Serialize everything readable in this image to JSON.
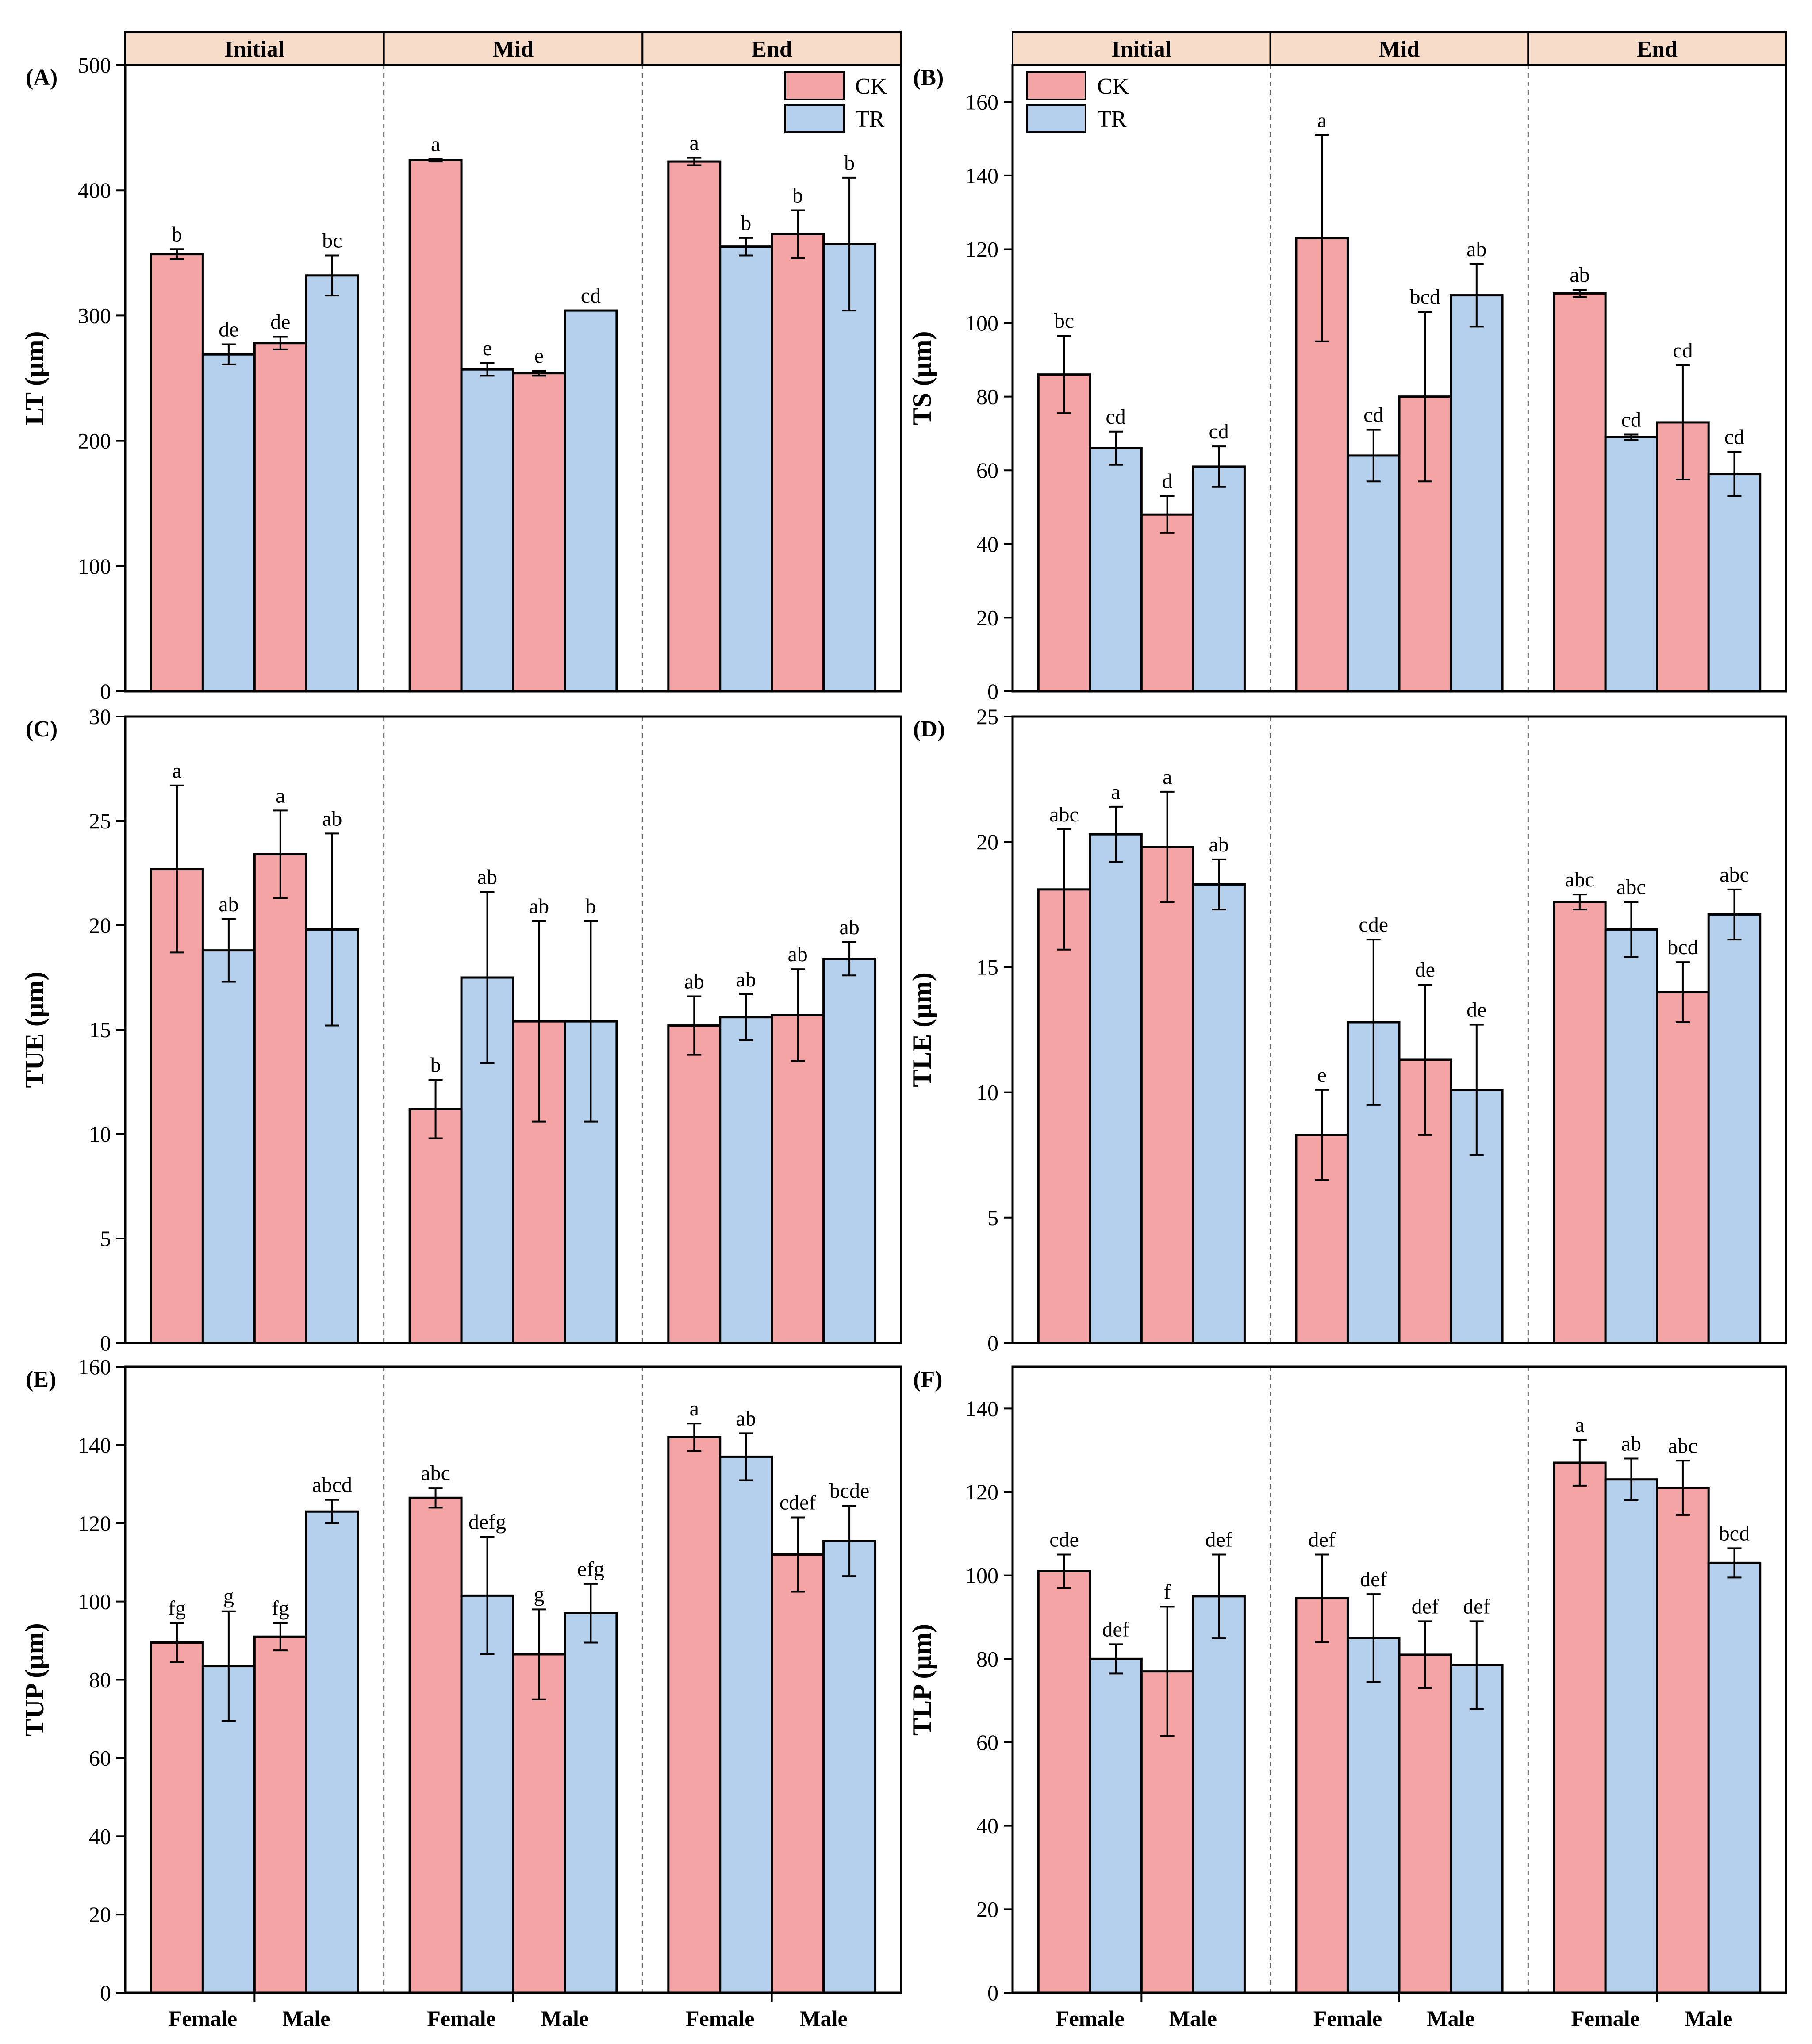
{
  "colors": {
    "CK": "#f4a4a4",
    "TR": "#b4d0ec",
    "strip": "#f7dcc9",
    "axis": "#000000",
    "divider": "#666666"
  },
  "legend": {
    "entries": [
      "CK",
      "TR"
    ]
  },
  "facets": [
    "Initial",
    "Mid",
    "End"
  ],
  "x_categories": [
    "Female",
    "Male"
  ],
  "chart_data": [
    {
      "type": "bar",
      "panel": "(A)",
      "ylabel": "LT (µm)",
      "ylim": [
        0,
        500
      ],
      "yticks": [
        0,
        100,
        200,
        300,
        400,
        500
      ],
      "facets": [
        "Initial",
        "Mid",
        "End"
      ],
      "categories": [
        "Female",
        "Male"
      ],
      "series_order": [
        "CK",
        "TR"
      ],
      "legend": true,
      "bars": [
        {
          "facet": "Initial",
          "category": "Female",
          "series": "CK",
          "value": 349,
          "err": 4,
          "letter": "b"
        },
        {
          "facet": "Initial",
          "category": "Female",
          "series": "TR",
          "value": 269,
          "err": 8,
          "letter": "de"
        },
        {
          "facet": "Initial",
          "category": "Male",
          "series": "CK",
          "value": 278,
          "err": 5,
          "letter": "de"
        },
        {
          "facet": "Initial",
          "category": "Male",
          "series": "TR",
          "value": 332,
          "err": 16,
          "letter": "bc"
        },
        {
          "facet": "Mid",
          "category": "Female",
          "series": "CK",
          "value": 424,
          "err": 1,
          "letter": "a"
        },
        {
          "facet": "Mid",
          "category": "Female",
          "series": "TR",
          "value": 257,
          "err": 5,
          "letter": "e"
        },
        {
          "facet": "Mid",
          "category": "Male",
          "series": "CK",
          "value": 254,
          "err": 2,
          "letter": "e"
        },
        {
          "facet": "Mid",
          "category": "Male",
          "series": "TR",
          "value": 304,
          "err": 0,
          "letter": "cd"
        },
        {
          "facet": "End",
          "category": "Female",
          "series": "CK",
          "value": 423,
          "err": 3,
          "letter": "a"
        },
        {
          "facet": "End",
          "category": "Female",
          "series": "TR",
          "value": 355,
          "err": 7,
          "letter": "b"
        },
        {
          "facet": "End",
          "category": "Male",
          "series": "CK",
          "value": 365,
          "err": 19,
          "letter": "b"
        },
        {
          "facet": "End",
          "category": "Male",
          "series": "TR",
          "value": 357,
          "err": 53,
          "letter": "b"
        }
      ]
    },
    {
      "type": "bar",
      "panel": "(B)",
      "ylabel": "TS (µm)",
      "ylim": [
        0,
        170
      ],
      "yticks": [
        0,
        20,
        40,
        60,
        80,
        100,
        120,
        140,
        160
      ],
      "facets": [
        "Initial",
        "Mid",
        "End"
      ],
      "categories": [
        "Female",
        "Male"
      ],
      "series_order": [
        "CK",
        "TR"
      ],
      "legend": true,
      "bars": [
        {
          "facet": "Initial",
          "category": "Female",
          "series": "CK",
          "value": 86,
          "err": 10.5,
          "letter": "bc"
        },
        {
          "facet": "Initial",
          "category": "Female",
          "series": "TR",
          "value": 66,
          "err": 4.5,
          "letter": "cd"
        },
        {
          "facet": "Initial",
          "category": "Male",
          "series": "CK",
          "value": 48,
          "err": 5,
          "letter": "d"
        },
        {
          "facet": "Initial",
          "category": "Male",
          "series": "TR",
          "value": 61,
          "err": 5.5,
          "letter": "cd"
        },
        {
          "facet": "Mid",
          "category": "Female",
          "series": "CK",
          "value": 123,
          "err": 28,
          "letter": "a"
        },
        {
          "facet": "Mid",
          "category": "Female",
          "series": "TR",
          "value": 64,
          "err": 7,
          "letter": "cd"
        },
        {
          "facet": "Mid",
          "category": "Male",
          "series": "CK",
          "value": 80,
          "err": 23,
          "letter": "bcd"
        },
        {
          "facet": "Mid",
          "category": "Male",
          "series": "TR",
          "value": 107.5,
          "err": 8.5,
          "letter": "ab"
        },
        {
          "facet": "End",
          "category": "Female",
          "series": "CK",
          "value": 108,
          "err": 1,
          "letter": "ab"
        },
        {
          "facet": "End",
          "category": "Female",
          "series": "TR",
          "value": 69,
          "err": 0.7,
          "letter": "cd"
        },
        {
          "facet": "End",
          "category": "Male",
          "series": "CK",
          "value": 73,
          "err": 15.5,
          "letter": "cd"
        },
        {
          "facet": "End",
          "category": "Male",
          "series": "TR",
          "value": 59,
          "err": 6,
          "letter": "cd"
        }
      ]
    },
    {
      "type": "bar",
      "panel": "(C)",
      "ylabel": "TUE (µm)",
      "ylim": [
        0,
        30
      ],
      "yticks": [
        0,
        5,
        10,
        15,
        20,
        25,
        30
      ],
      "facets": [
        "Initial",
        "Mid",
        "End"
      ],
      "categories": [
        "Female",
        "Male"
      ],
      "series_order": [
        "CK",
        "TR"
      ],
      "legend": false,
      "bars": [
        {
          "facet": "Initial",
          "category": "Female",
          "series": "CK",
          "value": 22.7,
          "err": 4,
          "letter": "a"
        },
        {
          "facet": "Initial",
          "category": "Female",
          "series": "TR",
          "value": 18.8,
          "err": 1.5,
          "letter": "ab"
        },
        {
          "facet": "Initial",
          "category": "Male",
          "series": "CK",
          "value": 23.4,
          "err": 2.1,
          "letter": "a"
        },
        {
          "facet": "Initial",
          "category": "Male",
          "series": "TR",
          "value": 19.8,
          "err": 4.6,
          "letter": "ab"
        },
        {
          "facet": "Mid",
          "category": "Female",
          "series": "CK",
          "value": 11.2,
          "err": 1.4,
          "letter": "b"
        },
        {
          "facet": "Mid",
          "category": "Female",
          "series": "TR",
          "value": 17.5,
          "err": 4.1,
          "letter": "ab"
        },
        {
          "facet": "Mid",
          "category": "Male",
          "series": "CK",
          "value": 15.4,
          "err": 4.8,
          "letter": "ab"
        },
        {
          "facet": "Mid",
          "category": "Male",
          "series": "TR",
          "value": 15.4,
          "err": 4.8,
          "letter": "b"
        },
        {
          "facet": "End",
          "category": "Female",
          "series": "CK",
          "value": 15.2,
          "err": 1.4,
          "letter": "ab"
        },
        {
          "facet": "End",
          "category": "Female",
          "series": "TR",
          "value": 15.6,
          "err": 1.1,
          "letter": "ab"
        },
        {
          "facet": "End",
          "category": "Male",
          "series": "CK",
          "value": 15.7,
          "err": 2.2,
          "letter": "ab"
        },
        {
          "facet": "End",
          "category": "Male",
          "series": "TR",
          "value": 18.4,
          "err": 0.8,
          "letter": "ab"
        }
      ]
    },
    {
      "type": "bar",
      "panel": "(D)",
      "ylabel": "TLE (µm)",
      "ylim": [
        0,
        25
      ],
      "yticks": [
        0,
        5,
        10,
        15,
        20,
        25
      ],
      "facets": [
        "Initial",
        "Mid",
        "End"
      ],
      "categories": [
        "Female",
        "Male"
      ],
      "series_order": [
        "CK",
        "TR"
      ],
      "legend": false,
      "bars": [
        {
          "facet": "Initial",
          "category": "Female",
          "series": "CK",
          "value": 18.1,
          "err": 2.4,
          "letter": "abc"
        },
        {
          "facet": "Initial",
          "category": "Female",
          "series": "TR",
          "value": 20.3,
          "err": 1.1,
          "letter": "a"
        },
        {
          "facet": "Initial",
          "category": "Male",
          "series": "CK",
          "value": 19.8,
          "err": 2.2,
          "letter": "a"
        },
        {
          "facet": "Initial",
          "category": "Male",
          "series": "TR",
          "value": 18.3,
          "err": 1,
          "letter": "ab"
        },
        {
          "facet": "Mid",
          "category": "Female",
          "series": "CK",
          "value": 8.3,
          "err": 1.8,
          "letter": "e"
        },
        {
          "facet": "Mid",
          "category": "Female",
          "series": "TR",
          "value": 12.8,
          "err": 3.3,
          "letter": "cde"
        },
        {
          "facet": "Mid",
          "category": "Male",
          "series": "CK",
          "value": 11.3,
          "err": 3,
          "letter": "de"
        },
        {
          "facet": "Mid",
          "category": "Male",
          "series": "TR",
          "value": 10.1,
          "err": 2.6,
          "letter": "de"
        },
        {
          "facet": "End",
          "category": "Female",
          "series": "CK",
          "value": 17.6,
          "err": 0.3,
          "letter": "abc"
        },
        {
          "facet": "End",
          "category": "Female",
          "series": "TR",
          "value": 16.5,
          "err": 1.1,
          "letter": "abc"
        },
        {
          "facet": "End",
          "category": "Male",
          "series": "CK",
          "value": 14,
          "err": 1.2,
          "letter": "bcd"
        },
        {
          "facet": "End",
          "category": "Male",
          "series": "TR",
          "value": 17.1,
          "err": 1,
          "letter": "abc"
        }
      ]
    },
    {
      "type": "bar",
      "panel": "(E)",
      "ylabel": "TUP (µm)",
      "ylim": [
        0,
        160
      ],
      "yticks": [
        0,
        20,
        40,
        60,
        80,
        100,
        120,
        140,
        160
      ],
      "facets": [
        "Initial",
        "Mid",
        "End"
      ],
      "categories": [
        "Female",
        "Male"
      ],
      "series_order": [
        "CK",
        "TR"
      ],
      "legend": false,
      "bars": [
        {
          "facet": "Initial",
          "category": "Female",
          "series": "CK",
          "value": 89.5,
          "err": 5,
          "letter": "fg"
        },
        {
          "facet": "Initial",
          "category": "Female",
          "series": "TR",
          "value": 83.5,
          "err": 14,
          "letter": "g"
        },
        {
          "facet": "Initial",
          "category": "Male",
          "series": "CK",
          "value": 91,
          "err": 3.5,
          "letter": "fg"
        },
        {
          "facet": "Initial",
          "category": "Male",
          "series": "TR",
          "value": 123,
          "err": 3,
          "letter": "abcd"
        },
        {
          "facet": "Mid",
          "category": "Female",
          "series": "CK",
          "value": 126.5,
          "err": 2.5,
          "letter": "abc"
        },
        {
          "facet": "Mid",
          "category": "Female",
          "series": "TR",
          "value": 101.5,
          "err": 15,
          "letter": "defg"
        },
        {
          "facet": "Mid",
          "category": "Male",
          "series": "CK",
          "value": 86.5,
          "err": 11.5,
          "letter": "g"
        },
        {
          "facet": "Mid",
          "category": "Male",
          "series": "TR",
          "value": 97,
          "err": 7.5,
          "letter": "efg"
        },
        {
          "facet": "End",
          "category": "Female",
          "series": "CK",
          "value": 142,
          "err": 3.5,
          "letter": "a"
        },
        {
          "facet": "End",
          "category": "Female",
          "series": "TR",
          "value": 137,
          "err": 6,
          "letter": "ab"
        },
        {
          "facet": "End",
          "category": "Male",
          "series": "CK",
          "value": 112,
          "err": 9.5,
          "letter": "cdef"
        },
        {
          "facet": "End",
          "category": "Male",
          "series": "TR",
          "value": 115.5,
          "err": 9,
          "letter": "bcde"
        }
      ]
    },
    {
      "type": "bar",
      "panel": "(F)",
      "ylabel": "TLP (µm)",
      "ylim": [
        0,
        150
      ],
      "yticks": [
        0,
        20,
        40,
        60,
        80,
        100,
        120,
        140
      ],
      "facets": [
        "Initial",
        "Mid",
        "End"
      ],
      "categories": [
        "Female",
        "Male"
      ],
      "series_order": [
        "CK",
        "TR"
      ],
      "legend": false,
      "bars": [
        {
          "facet": "Initial",
          "category": "Female",
          "series": "CK",
          "value": 101,
          "err": 4,
          "letter": "cde"
        },
        {
          "facet": "Initial",
          "category": "Female",
          "series": "TR",
          "value": 80,
          "err": 3.5,
          "letter": "def"
        },
        {
          "facet": "Initial",
          "category": "Male",
          "series": "CK",
          "value": 77,
          "err": 15.5,
          "letter": "f"
        },
        {
          "facet": "Initial",
          "category": "Male",
          "series": "TR",
          "value": 95,
          "err": 10,
          "letter": "def"
        },
        {
          "facet": "Mid",
          "category": "Female",
          "series": "CK",
          "value": 94.5,
          "err": 10.5,
          "letter": "def"
        },
        {
          "facet": "Mid",
          "category": "Female",
          "series": "TR",
          "value": 85,
          "err": 10.5,
          "letter": "def"
        },
        {
          "facet": "Mid",
          "category": "Male",
          "series": "CK",
          "value": 81,
          "err": 8,
          "letter": "def"
        },
        {
          "facet": "Mid",
          "category": "Male",
          "series": "TR",
          "value": 78.5,
          "err": 10.5,
          "letter": "def"
        },
        {
          "facet": "End",
          "category": "Female",
          "series": "CK",
          "value": 127,
          "err": 5.5,
          "letter": "a"
        },
        {
          "facet": "End",
          "category": "Female",
          "series": "TR",
          "value": 123,
          "err": 5,
          "letter": "ab"
        },
        {
          "facet": "End",
          "category": "Male",
          "series": "CK",
          "value": 121,
          "err": 6.5,
          "letter": "abc"
        },
        {
          "facet": "End",
          "category": "Male",
          "series": "TR",
          "value": 103,
          "err": 3.5,
          "letter": "bcd"
        }
      ]
    }
  ]
}
